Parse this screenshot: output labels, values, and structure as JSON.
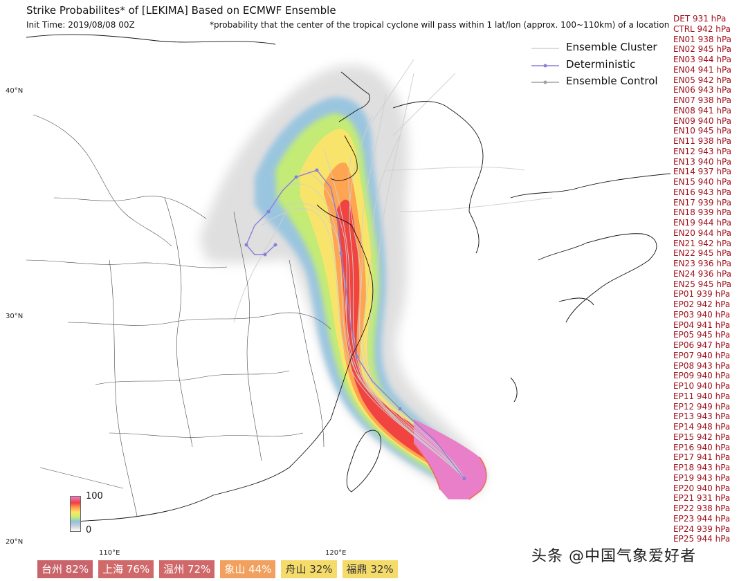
{
  "header": {
    "title": "Strike Probabilites* of [LEKIMA] Based on ECMWF Ensemble",
    "init_time": "Init Time: 2019/08/08 00Z",
    "note": "*probability that the center of the tropical cyclone will pass within 1 lat/lon (approx. 100~110km) of a location"
  },
  "axes": {
    "lat_labels": [
      "40°N",
      "30°N",
      "20°N"
    ],
    "lon_labels": [
      "110°E",
      "120°E"
    ]
  },
  "legend": {
    "items": [
      {
        "label": "Ensemble Cluster",
        "color": "#d0d0d0"
      },
      {
        "label": "Deterministic",
        "color": "#8a7fd6"
      },
      {
        "label": "Ensemble Control",
        "color": "#a0a0a0"
      }
    ]
  },
  "colorbar": {
    "max_label": "100",
    "min_label": "0"
  },
  "pressures": [
    "DET 931 hPa",
    "CTRL 942 hPa",
    "EN01 938 hPa",
    "EN02 945 hPa",
    "EN03 944 hPa",
    "EN04 941 hPa",
    "EN05 942 hPa",
    "EN06 943 hPa",
    "EN07 938 hPa",
    "EN08 941 hPa",
    "EN09 940 hPa",
    "EN10 945 hPa",
    "EN11 938 hPa",
    "EN12 943 hPa",
    "EN13 940 hPa",
    "EN14 937 hPa",
    "EN15 940 hPa",
    "EN16 943 hPa",
    "EN17 939 hPa",
    "EN18 939 hPa",
    "EN19 944 hPa",
    "EN20 944 hPa",
    "EN21 942 hPa",
    "EN22 945 hPa",
    "EN23 936 hPa",
    "EN24 936 hPa",
    "EN25 945 hPa",
    "EP01 939 hPa",
    "EP02 942 hPa",
    "EP03 940 hPa",
    "EP04 941 hPa",
    "EP05 945 hPa",
    "EP06 947 hPa",
    "EP07 940 hPa",
    "EP08 943 hPa",
    "EP09 940 hPa",
    "EP10 940 hPa",
    "EP11 940 hPa",
    "EP12 949 hPa",
    "EP13 943 hPa",
    "EP14 948 hPa",
    "EP15 942 hPa",
    "EP16 940 hPa",
    "EP17 941 hPa",
    "EP18 943 hPa",
    "EP19 943 hPa",
    "EP20 940 hPa",
    "EP21 931 hPa",
    "EP22 938 hPa",
    "EP23 944 hPa",
    "EP24 939 hPa",
    "EP25 944 hPa"
  ],
  "cities": [
    {
      "label": "台州 82%",
      "color": "#c9646a"
    },
    {
      "label": "上海 76%",
      "color": "#d06a6a"
    },
    {
      "label": "温州 72%",
      "color": "#d0686a"
    },
    {
      "label": "象山 44%",
      "color": "#f2a05e"
    },
    {
      "label": "舟山 32%",
      "color": "#f5dc6a"
    },
    {
      "label": "福鼎 32%",
      "color": "#f5dc6a"
    }
  ],
  "watermark": "头条 @中国气象爱好者",
  "colors": {
    "coast": "#111111",
    "border": "#444444",
    "cluster_track": "#cfcfcf",
    "deterministic": "#8a7fd6",
    "pressure_text": "#a0101a"
  }
}
